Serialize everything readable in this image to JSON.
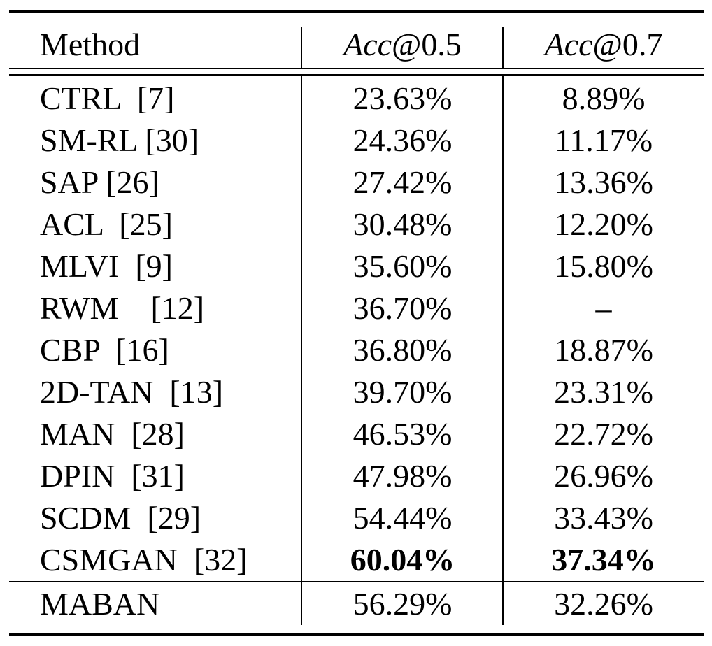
{
  "table": {
    "headers": {
      "method": "Method",
      "acc05_italic": "Acc",
      "acc05_rest": "@0.5",
      "acc07_italic": "Acc",
      "acc07_rest": "@0.7"
    },
    "rows": [
      {
        "method": "CTRL  [7]",
        "acc05": "23.63%",
        "acc07": "8.89%"
      },
      {
        "method": "SM-RL [30]",
        "acc05": "24.36%",
        "acc07": "11.17%"
      },
      {
        "method": "SAP [26]",
        "acc05": "27.42%",
        "acc07": "13.36%"
      },
      {
        "method": "ACL  [25]",
        "acc05": "30.48%",
        "acc07": "12.20%"
      },
      {
        "method": "MLVI  [9]",
        "acc05": "35.60%",
        "acc07": "15.80%"
      },
      {
        "method": "RWM    [12]",
        "acc05": "36.70%",
        "acc07": "–"
      },
      {
        "method": "CBP  [16]",
        "acc05": "36.80%",
        "acc07": "18.87%"
      },
      {
        "method": "2D-TAN  [13]",
        "acc05": "39.70%",
        "acc07": "23.31%"
      },
      {
        "method": "MAN  [28]",
        "acc05": "46.53%",
        "acc07": "22.72%"
      },
      {
        "method": "DPIN  [31]",
        "acc05": "47.98%",
        "acc07": "26.96%"
      },
      {
        "method": "SCDM  [29]",
        "acc05": "54.44%",
        "acc07": "33.43%"
      },
      {
        "method": "CSMGAN  [32]",
        "acc05": "60.04%",
        "acc07": "37.34%"
      }
    ],
    "final_row": {
      "method": "MABAN",
      "acc05": "56.29%",
      "acc07": "32.26%"
    }
  }
}
